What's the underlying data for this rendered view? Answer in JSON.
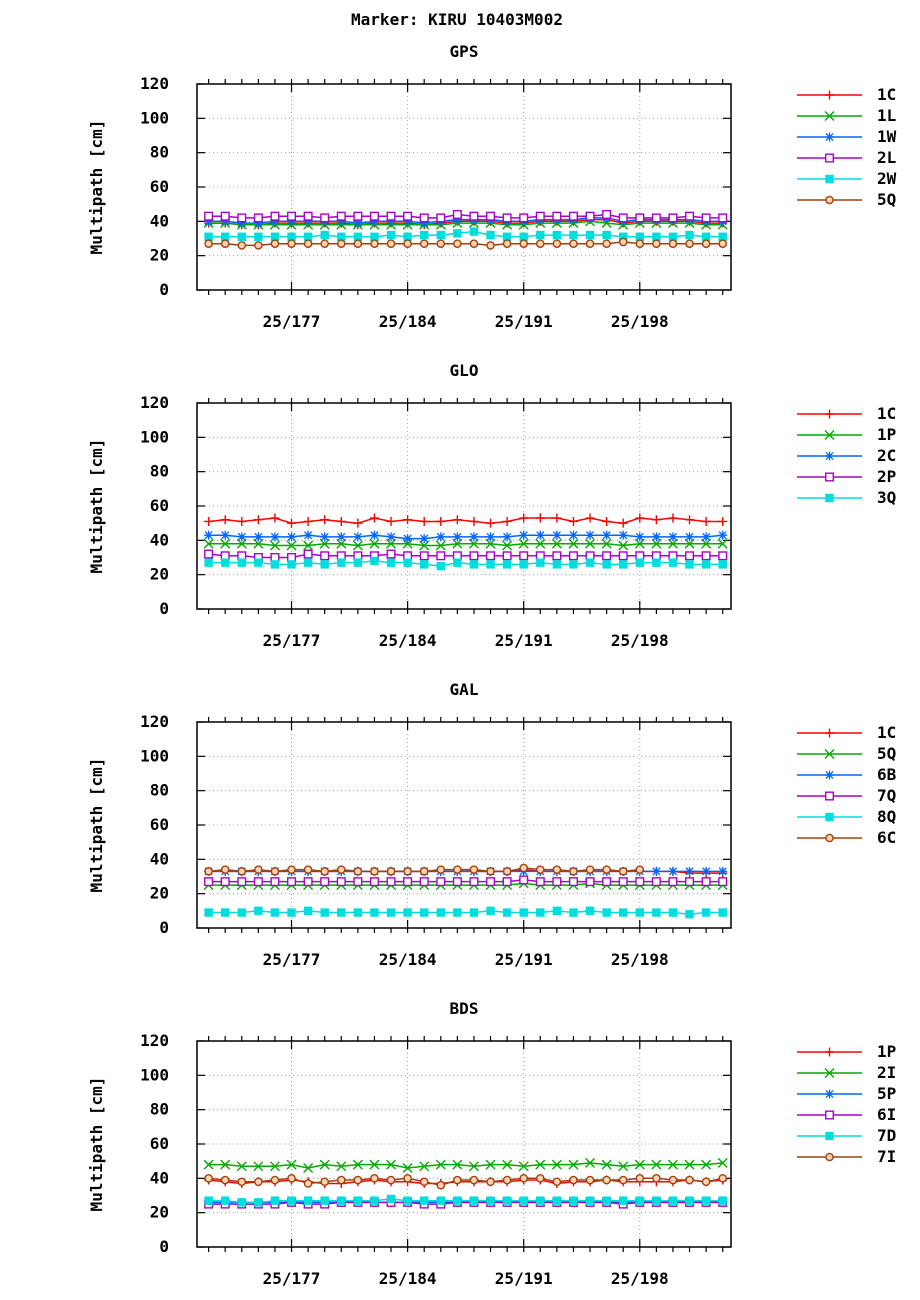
{
  "figure": {
    "marker_title": "Marker: KIRU 10403M002"
  },
  "chart_data": [
    {
      "type": "line",
      "title": "GPS",
      "ylabel": "Multipath [cm]",
      "xlabel": "",
      "ylim": [
        0,
        120
      ],
      "yticks": [
        0,
        20,
        40,
        60,
        80,
        100,
        120
      ],
      "xlim": [
        171.3,
        203.5
      ],
      "xticks": [
        {
          "x": 177,
          "label": "25/177"
        },
        {
          "x": 184,
          "label": "25/184"
        },
        {
          "x": 191,
          "label": "25/191"
        },
        {
          "x": 198,
          "label": "25/198"
        }
      ],
      "grid": true,
      "legend": "right",
      "x": [
        172,
        173,
        174,
        175,
        176,
        177,
        178,
        179,
        180,
        181,
        182,
        183,
        184,
        185,
        186,
        187,
        188,
        189,
        190,
        191,
        192,
        193,
        194,
        195,
        196,
        197,
        198,
        199,
        200,
        201,
        202,
        203
      ],
      "series": [
        {
          "name": "1C",
          "color": "#ff0000",
          "marker": "plus",
          "values": [
            39,
            39,
            38,
            38,
            39,
            39,
            39,
            39,
            39,
            38,
            39,
            39,
            39,
            38,
            39,
            40,
            40,
            40,
            39,
            39,
            40,
            40,
            40,
            41,
            41,
            39,
            40,
            40,
            40,
            40,
            39,
            39
          ]
        },
        {
          "name": "1L",
          "color": "#00aa00",
          "marker": "x",
          "values": [
            39,
            39,
            38,
            38,
            38,
            38,
            38,
            38,
            38,
            38,
            38,
            38,
            38,
            38,
            38,
            39,
            39,
            39,
            38,
            38,
            39,
            39,
            39,
            40,
            39,
            38,
            39,
            39,
            39,
            39,
            38,
            38
          ]
        },
        {
          "name": "1W",
          "color": "#0066ff",
          "marker": "star",
          "values": [
            40,
            40,
            39,
            39,
            40,
            40,
            40,
            40,
            40,
            39,
            40,
            40,
            40,
            39,
            40,
            41,
            41,
            41,
            40,
            40,
            41,
            41,
            41,
            42,
            42,
            40,
            41,
            41,
            41,
            41,
            40,
            40
          ]
        },
        {
          "name": "2L",
          "color": "#aa00cc",
          "marker": "square",
          "values": [
            43,
            43,
            42,
            42,
            43,
            43,
            43,
            42,
            43,
            43,
            43,
            43,
            43,
            42,
            42,
            44,
            43,
            43,
            42,
            42,
            43,
            43,
            43,
            43,
            44,
            42,
            42,
            42,
            42,
            43,
            42,
            42
          ]
        },
        {
          "name": "2W",
          "color": "#00dddd",
          "marker": "filled-square",
          "values": [
            31,
            31,
            31,
            31,
            31,
            31,
            31,
            32,
            31,
            31,
            31,
            32,
            31,
            32,
            32,
            33,
            34,
            32,
            31,
            31,
            32,
            32,
            32,
            32,
            32,
            31,
            31,
            31,
            31,
            32,
            31,
            31
          ]
        },
        {
          "name": "5Q",
          "color": "#a0410d",
          "marker": "circle",
          "values": [
            27,
            27,
            26,
            26,
            27,
            27,
            27,
            27,
            27,
            27,
            27,
            27,
            27,
            27,
            27,
            27,
            27,
            26,
            27,
            27,
            27,
            27,
            27,
            27,
            27,
            28,
            27,
            27,
            27,
            27,
            27,
            27
          ]
        }
      ]
    },
    {
      "type": "line",
      "title": "GLO",
      "ylabel": "Multipath [cm]",
      "xlabel": "",
      "ylim": [
        0,
        120
      ],
      "yticks": [
        0,
        20,
        40,
        60,
        80,
        100,
        120
      ],
      "xlim": [
        171.3,
        203.5
      ],
      "xticks": [
        {
          "x": 177,
          "label": "25/177"
        },
        {
          "x": 184,
          "label": "25/184"
        },
        {
          "x": 191,
          "label": "25/191"
        },
        {
          "x": 198,
          "label": "25/198"
        }
      ],
      "grid": true,
      "legend": "right",
      "x": [
        172,
        173,
        174,
        175,
        176,
        177,
        178,
        179,
        180,
        181,
        182,
        183,
        184,
        185,
        186,
        187,
        188,
        189,
        190,
        191,
        192,
        193,
        194,
        195,
        196,
        197,
        198,
        199,
        200,
        201,
        202,
        203
      ],
      "series": [
        {
          "name": "1C",
          "color": "#ff0000",
          "marker": "plus",
          "values": [
            51,
            52,
            51,
            52,
            53,
            50,
            51,
            52,
            51,
            50,
            53,
            51,
            52,
            51,
            51,
            52,
            51,
            50,
            51,
            53,
            53,
            53,
            51,
            53,
            51,
            50,
            53,
            52,
            53,
            52,
            51,
            51
          ]
        },
        {
          "name": "1P",
          "color": "#00aa00",
          "marker": "x",
          "values": [
            38,
            38,
            38,
            38,
            37,
            37,
            37,
            38,
            38,
            37,
            38,
            38,
            38,
            37,
            37,
            38,
            38,
            38,
            37,
            38,
            38,
            38,
            38,
            38,
            38,
            37,
            38,
            38,
            38,
            38,
            38,
            38
          ]
        },
        {
          "name": "2C",
          "color": "#0066ff",
          "marker": "star",
          "values": [
            43,
            43,
            42,
            42,
            42,
            42,
            43,
            42,
            42,
            42,
            43,
            42,
            41,
            41,
            42,
            42,
            42,
            42,
            42,
            43,
            43,
            43,
            43,
            43,
            43,
            43,
            42,
            42,
            42,
            42,
            42,
            43
          ]
        },
        {
          "name": "2P",
          "color": "#aa00cc",
          "marker": "square",
          "values": [
            32,
            31,
            31,
            30,
            30,
            30,
            32,
            31,
            31,
            31,
            31,
            32,
            31,
            31,
            31,
            31,
            31,
            31,
            31,
            31,
            31,
            31,
            31,
            31,
            31,
            31,
            31,
            31,
            31,
            31,
            31,
            31
          ]
        },
        {
          "name": "3Q",
          "color": "#00dddd",
          "marker": "filled-square",
          "values": [
            27,
            27,
            27,
            27,
            26,
            26,
            27,
            26,
            27,
            27,
            28,
            27,
            27,
            26,
            25,
            27,
            26,
            26,
            26,
            26,
            27,
            26,
            26,
            27,
            26,
            26,
            27,
            27,
            27,
            26,
            26,
            26
          ]
        }
      ]
    },
    {
      "type": "line",
      "title": "GAL",
      "ylabel": "Multipath [cm]",
      "xlabel": "",
      "ylim": [
        0,
        120
      ],
      "yticks": [
        0,
        20,
        40,
        60,
        80,
        100,
        120
      ],
      "xlim": [
        171.3,
        203.5
      ],
      "xticks": [
        {
          "x": 177,
          "label": "25/177"
        },
        {
          "x": 184,
          "label": "25/184"
        },
        {
          "x": 191,
          "label": "25/191"
        },
        {
          "x": 198,
          "label": "25/198"
        }
      ],
      "grid": true,
      "legend": "right",
      "x": [
        172,
        173,
        174,
        175,
        176,
        177,
        178,
        179,
        180,
        181,
        182,
        183,
        184,
        185,
        186,
        187,
        188,
        189,
        190,
        191,
        192,
        193,
        194,
        195,
        196,
        197,
        198,
        199,
        200,
        201,
        202,
        203
      ],
      "series": [
        {
          "name": "1C",
          "color": "#ff0000",
          "marker": "plus",
          "values": [
            33,
            33,
            33,
            33,
            33,
            33,
            33,
            33,
            33,
            33,
            33,
            33,
            33,
            33,
            33,
            33,
            33,
            33,
            33,
            34,
            33,
            33,
            33,
            33,
            33,
            33,
            33,
            33,
            33,
            32,
            32,
            32
          ]
        },
        {
          "name": "5Q",
          "color": "#00aa00",
          "marker": "x",
          "values": [
            25,
            25,
            25,
            25,
            25,
            25,
            25,
            25,
            25,
            25,
            25,
            25,
            25,
            25,
            25,
            25,
            25,
            25,
            25,
            26,
            25,
            25,
            25,
            26,
            25,
            25,
            25,
            25,
            25,
            25,
            25,
            25
          ]
        },
        {
          "name": "6B",
          "color": "#0066ff",
          "marker": "star",
          "values": [
            33,
            33,
            33,
            33,
            33,
            33,
            33,
            33,
            33,
            33,
            33,
            33,
            33,
            33,
            33,
            33,
            33,
            33,
            33,
            33,
            33,
            33,
            33,
            33,
            33,
            33,
            33,
            33,
            33,
            33,
            33,
            33
          ]
        },
        {
          "name": "7Q",
          "color": "#aa00cc",
          "marker": "square",
          "values": [
            27,
            27,
            27,
            27,
            27,
            27,
            27,
            27,
            27,
            27,
            27,
            27,
            27,
            27,
            27,
            27,
            27,
            27,
            27,
            28,
            27,
            27,
            27,
            27,
            27,
            27,
            27,
            27,
            27,
            27,
            27,
            27
          ]
        },
        {
          "name": "8Q",
          "color": "#00dddd",
          "marker": "filled-square",
          "values": [
            9,
            9,
            9,
            10,
            9,
            9,
            10,
            9,
            9,
            9,
            9,
            9,
            9,
            9,
            9,
            9,
            9,
            10,
            9,
            9,
            9,
            10,
            9,
            10,
            9,
            9,
            9,
            9,
            9,
            8,
            9,
            9
          ]
        },
        {
          "name": "6C",
          "color": "#a0410d",
          "marker": "circle",
          "values": [
            33,
            34,
            33,
            34,
            33,
            34,
            34,
            33,
            34,
            33,
            33,
            33,
            33,
            33,
            34,
            34,
            34,
            33,
            33,
            35,
            34,
            34,
            33,
            34,
            34,
            33,
            34,
            null,
            null,
            null,
            null,
            null
          ]
        }
      ]
    },
    {
      "type": "line",
      "title": "BDS",
      "ylabel": "Multipath [cm]",
      "xlabel": "",
      "ylim": [
        0,
        120
      ],
      "yticks": [
        0,
        20,
        40,
        60,
        80,
        100,
        120
      ],
      "xlim": [
        171.3,
        203.5
      ],
      "xticks": [
        {
          "x": 177,
          "label": "25/177"
        },
        {
          "x": 184,
          "label": "25/184"
        },
        {
          "x": 191,
          "label": "25/191"
        },
        {
          "x": 198,
          "label": "25/198"
        }
      ],
      "grid": true,
      "legend": "right",
      "x": [
        172,
        173,
        174,
        175,
        176,
        177,
        178,
        179,
        180,
        181,
        182,
        183,
        184,
        185,
        186,
        187,
        188,
        189,
        190,
        191,
        192,
        193,
        194,
        195,
        196,
        197,
        198,
        199,
        200,
        201,
        202,
        203
      ],
      "series": [
        {
          "name": "1P",
          "color": "#ff0000",
          "marker": "plus",
          "values": [
            39,
            38,
            37,
            38,
            38,
            39,
            38,
            37,
            37,
            38,
            39,
            38,
            38,
            37,
            37,
            38,
            38,
            38,
            38,
            39,
            39,
            37,
            38,
            38,
            39,
            38,
            38,
            38,
            38,
            39,
            38,
            39
          ]
        },
        {
          "name": "2I",
          "color": "#00aa00",
          "marker": "x",
          "values": [
            48,
            48,
            47,
            47,
            47,
            48,
            46,
            48,
            47,
            48,
            48,
            48,
            46,
            47,
            48,
            48,
            47,
            48,
            48,
            47,
            48,
            48,
            48,
            49,
            48,
            47,
            48,
            48,
            48,
            48,
            48,
            49
          ]
        },
        {
          "name": "5P",
          "color": "#0066ff",
          "marker": "star",
          "values": [
            26,
            26,
            26,
            26,
            26,
            26,
            26,
            26,
            26,
            26,
            26,
            26,
            26,
            26,
            26,
            26,
            26,
            26,
            26,
            26,
            26,
            26,
            26,
            26,
            26,
            26,
            26,
            26,
            26,
            26,
            26,
            26
          ]
        },
        {
          "name": "6I",
          "color": "#aa00cc",
          "marker": "square",
          "values": [
            25,
            25,
            25,
            25,
            25,
            26,
            25,
            25,
            26,
            26,
            26,
            26,
            26,
            25,
            25,
            26,
            26,
            26,
            26,
            26,
            26,
            26,
            26,
            26,
            26,
            25,
            26,
            26,
            26,
            26,
            26,
            26
          ]
        },
        {
          "name": "7D",
          "color": "#00dddd",
          "marker": "filled-square",
          "values": [
            27,
            27,
            26,
            26,
            27,
            27,
            27,
            27,
            27,
            27,
            27,
            28,
            27,
            27,
            27,
            27,
            27,
            27,
            27,
            27,
            27,
            27,
            27,
            27,
            27,
            27,
            27,
            27,
            27,
            27,
            27,
            27
          ]
        },
        {
          "name": "7I",
          "color": "#a0410d",
          "marker": "circle",
          "values": [
            40,
            39,
            38,
            38,
            39,
            40,
            37,
            38,
            39,
            39,
            40,
            39,
            40,
            38,
            36,
            39,
            39,
            38,
            39,
            40,
            40,
            38,
            39,
            39,
            39,
            39,
            40,
            40,
            39,
            39,
            38,
            40
          ]
        }
      ]
    }
  ]
}
